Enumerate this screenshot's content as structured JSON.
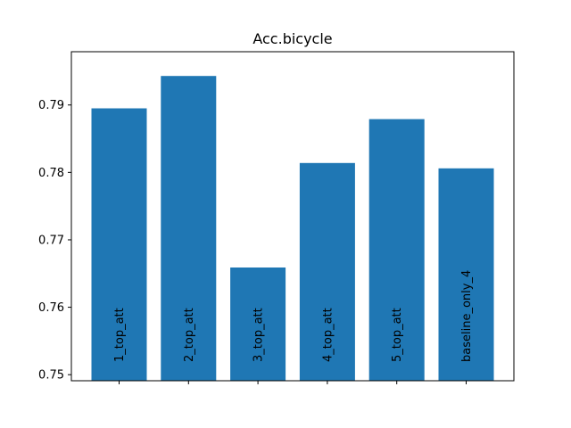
{
  "chart_data": {
    "type": "bar",
    "title": "Acc.bicycle",
    "xlabel": "",
    "ylabel": "",
    "categories": [
      "1_top_att",
      "2_top_att",
      "3_top_att",
      "4_top_att",
      "5_top_att",
      "baseline_only_4"
    ],
    "values": [
      0.7895,
      0.7943,
      0.7659,
      0.7814,
      0.7879,
      0.7806
    ],
    "ylim": [
      0.7491,
      0.7979
    ],
    "yticks": [
      0.75,
      0.76,
      0.77,
      0.78,
      0.79
    ],
    "ytick_labels": [
      "0.75",
      "0.76",
      "0.77",
      "0.78",
      "0.79"
    ],
    "bar_color": "#1f77b4",
    "grid": false,
    "legend": "none"
  }
}
